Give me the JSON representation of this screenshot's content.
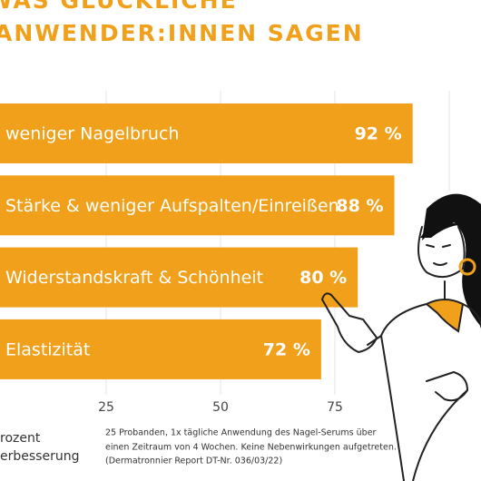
{
  "chart_data": {
    "type": "bar",
    "orientation": "horizontal",
    "title": [
      "WAS GLÜCKLICHE",
      "ANWENDER:INNEN SAGEN"
    ],
    "categories": [
      "weniger Nagelbruch",
      "Stärke & weniger Aufspalten/Einreißen",
      "Widerstandskraft & Schönheit",
      "Elastizität"
    ],
    "values": [
      92,
      88,
      80,
      72
    ],
    "value_labels": [
      "92 %",
      "88 %",
      "80 %",
      "72 %"
    ],
    "color": "#f0a01a",
    "xlim": [
      0,
      100
    ],
    "xticks": [
      25,
      50,
      75
    ],
    "grid": true,
    "x_label": [
      "rozent",
      "erbesserung"
    ],
    "footnote": [
      "25 Probanden, 1x tägliche Anwendung des Nagel-Serums über",
      "einen Zeitraum von 4 Wochen. Keine Nebenwirkungen aufgetreten.",
      "(Dermatronnier Report DT-Nr. 036/03/22)"
    ]
  }
}
